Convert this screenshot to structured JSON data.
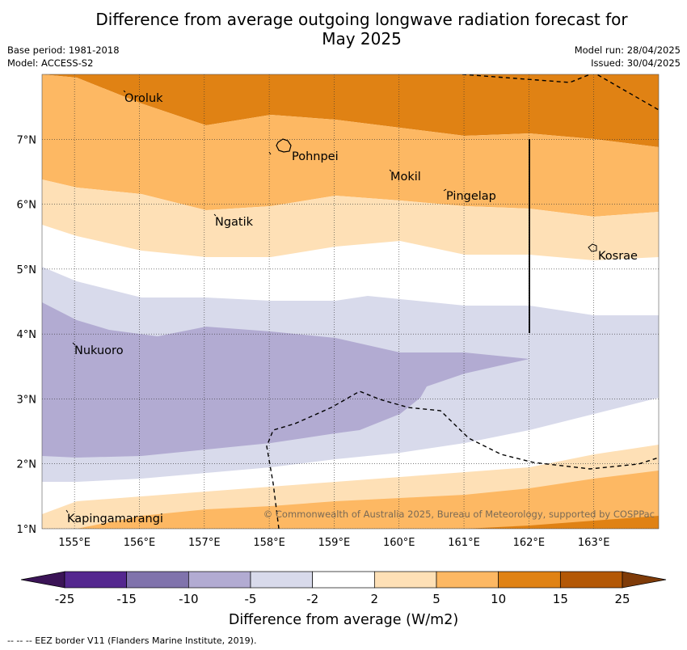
{
  "title_line1": "Difference from average outgoing longwave radiation forecast for",
  "title_line2": "May 2025",
  "base_period": "Base period: 1981-2018",
  "model": "Model: ACCESS-S2",
  "model_run": "Model run: 28/04/2025",
  "issued": "Issued: 30/04/2025",
  "map": {
    "lon_range": [
      154.5,
      164.0
    ],
    "lat_range": [
      1.0,
      8.0
    ],
    "grid": true,
    "lon_ticks": [
      "155°E",
      "156°E",
      "157°E",
      "158°E",
      "159°E",
      "160°E",
      "161°E",
      "162°E",
      "163°E"
    ],
    "lat_ticks": [
      "1°N",
      "2°N",
      "3°N",
      "4°N",
      "5°N",
      "6°N",
      "7°N"
    ],
    "places": [
      {
        "name": "Oroluk"
      },
      {
        "name": "Pohnpei"
      },
      {
        "name": "Mokil"
      },
      {
        "name": "Pingelap"
      },
      {
        "name": "Ngatik"
      },
      {
        "name": "Kosrae"
      },
      {
        "name": "Nukuoro"
      },
      {
        "name": "Kapingamarangi"
      }
    ],
    "copyright": "© Commonwealth of Australia 2025, Bureau of Meteorology, supported by COSPPac"
  },
  "colorbar": {
    "ticks": [
      "-25",
      "-15",
      "-10",
      "-5",
      "-2",
      "2",
      "5",
      "10",
      "15",
      "25"
    ],
    "colors": [
      "#3b1457",
      "#54278f",
      "#8073ac",
      "#b2abd2",
      "#d8daeb",
      "#ffffff",
      "#fee0b6",
      "#fdb863",
      "#e08214",
      "#b35806",
      "#7f3b08"
    ],
    "label": "Difference from average (W/m2)"
  },
  "footer": "--  --  -- EEZ border V11 (Flanders Marine Institute, 2019)."
}
